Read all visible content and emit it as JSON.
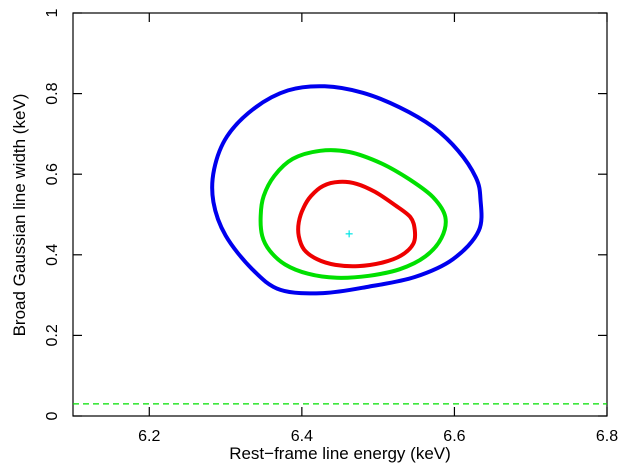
{
  "chart_data": {
    "type": "contour",
    "xlabel": "Rest−frame line energy (keV)",
    "ylabel": "Broad Gaussian line width (keV)",
    "xlim": [
      6.1,
      6.8
    ],
    "ylim": [
      0,
      1
    ],
    "x_ticks": [
      6.2,
      6.4,
      6.6,
      6.8
    ],
    "x_tick_labels": [
      "6.2",
      "6.4",
      "6.6",
      "6.8"
    ],
    "y_ticks": [
      0,
      0.2,
      0.4,
      0.6,
      0.8,
      1
    ],
    "y_tick_labels": [
      "0",
      "0.2",
      "0.4",
      "0.6",
      "0.8",
      "1"
    ],
    "best_fit": {
      "x": 6.462,
      "y": 0.452,
      "color": "#00e5e5",
      "marker": "+"
    },
    "reference_line": {
      "y": 0.03,
      "color": "#00e000",
      "style": "dashed"
    },
    "contours": [
      {
        "color": "#ee0000",
        "points": [
          [
            6.402,
            0.516
          ],
          [
            6.412,
            0.546
          ],
          [
            6.428,
            0.571
          ],
          [
            6.449,
            0.581
          ],
          [
            6.472,
            0.576
          ],
          [
            6.496,
            0.556
          ],
          [
            6.52,
            0.526
          ],
          [
            6.542,
            0.494
          ],
          [
            6.548,
            0.461
          ],
          [
            6.546,
            0.427
          ],
          [
            6.53,
            0.398
          ],
          [
            6.506,
            0.381
          ],
          [
            6.474,
            0.372
          ],
          [
            6.444,
            0.375
          ],
          [
            6.42,
            0.389
          ],
          [
            6.403,
            0.413
          ],
          [
            6.396,
            0.446
          ],
          [
            6.396,
            0.481
          ]
        ]
      },
      {
        "color": "#00e000",
        "points": [
          [
            6.35,
            0.546
          ],
          [
            6.364,
            0.596
          ],
          [
            6.388,
            0.638
          ],
          [
            6.424,
            0.658
          ],
          [
            6.462,
            0.655
          ],
          [
            6.504,
            0.627
          ],
          [
            6.542,
            0.586
          ],
          [
            6.572,
            0.543
          ],
          [
            6.588,
            0.494
          ],
          [
            6.583,
            0.442
          ],
          [
            6.562,
            0.396
          ],
          [
            6.528,
            0.364
          ],
          [
            6.488,
            0.348
          ],
          [
            6.446,
            0.343
          ],
          [
            6.408,
            0.353
          ],
          [
            6.378,
            0.376
          ],
          [
            6.358,
            0.41
          ],
          [
            6.348,
            0.447
          ],
          [
            6.346,
            0.497
          ]
        ]
      },
      {
        "color": "#0000ee",
        "points": [
          [
            6.285,
            0.612
          ],
          [
            6.302,
            0.694
          ],
          [
            6.338,
            0.764
          ],
          [
            6.382,
            0.808
          ],
          [
            6.43,
            0.818
          ],
          [
            6.48,
            0.802
          ],
          [
            6.528,
            0.766
          ],
          [
            6.572,
            0.717
          ],
          [
            6.605,
            0.658
          ],
          [
            6.628,
            0.592
          ],
          [
            6.634,
            0.54
          ],
          [
            6.632,
            0.46
          ],
          [
            6.598,
            0.389
          ],
          [
            6.548,
            0.345
          ],
          [
            6.488,
            0.321
          ],
          [
            6.428,
            0.305
          ],
          [
            6.372,
            0.313
          ],
          [
            6.335,
            0.364
          ],
          [
            6.3,
            0.448
          ],
          [
            6.284,
            0.531
          ]
        ]
      }
    ]
  }
}
